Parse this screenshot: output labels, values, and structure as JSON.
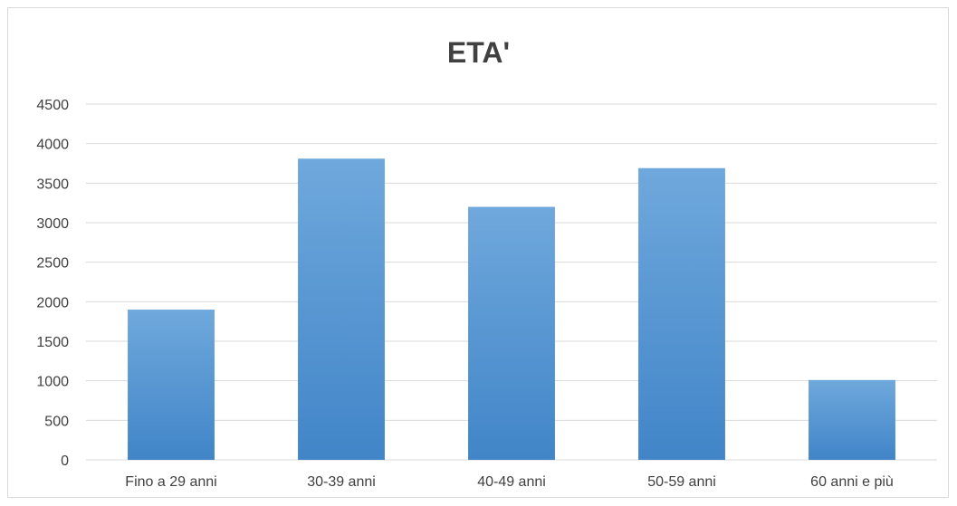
{
  "chart_data": {
    "type": "bar",
    "title": "ETA'",
    "xlabel": "",
    "ylabel": "",
    "categories": [
      "Fino a 29 anni",
      "30-39 anni",
      "40-49 anni",
      "50-59 anni",
      "60 anni e più"
    ],
    "values": [
      1900,
      3810,
      3200,
      3690,
      1010
    ],
    "ylim": [
      0,
      4500
    ],
    "yticks": [
      0,
      500,
      1000,
      1500,
      2000,
      2500,
      3000,
      3500,
      4000,
      4500
    ],
    "grid": true,
    "legend": "none",
    "colors": {
      "bar_top": "#6fa8dc",
      "bar_bottom": "#4185c8",
      "grid": "#d9d9d9",
      "text": "#404040"
    }
  }
}
